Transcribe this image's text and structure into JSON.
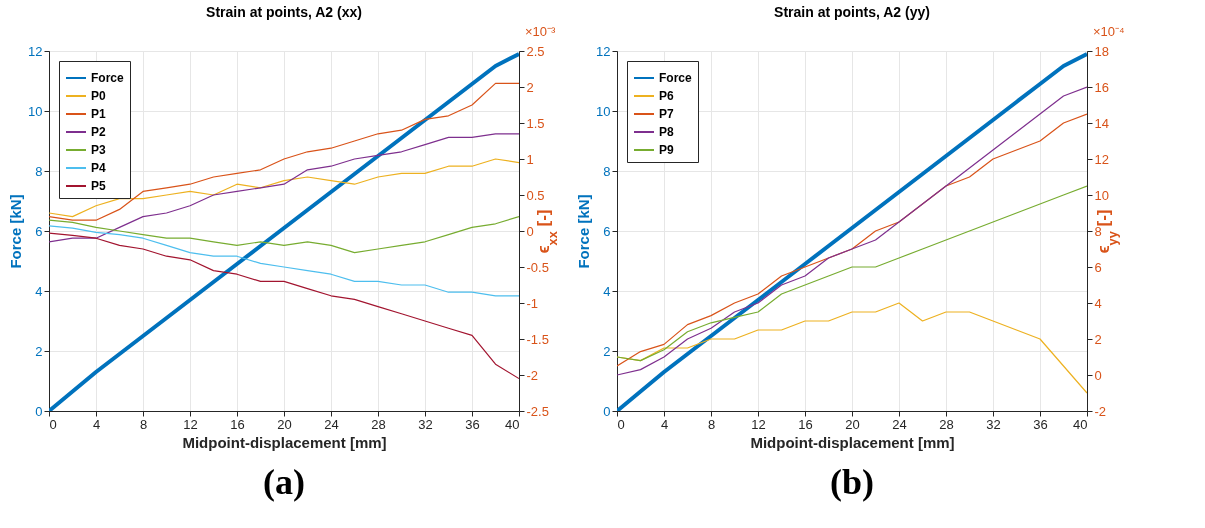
{
  "chart_data": [
    {
      "type": "line",
      "title": "Strain at points, A2 (xx)",
      "xlabel": "Midpoint-displacement [mm]",
      "ylabel": "Force [kN]",
      "y2label": "ϵ$_{xx}$ [-]",
      "annotations": [
        "×10⁻³",
        "(a)"
      ],
      "x": [
        0,
        2,
        4,
        6,
        8,
        10,
        12,
        14,
        16,
        18,
        20,
        22,
        24,
        26,
        28,
        30,
        32,
        34,
        36,
        38,
        40
      ],
      "xlim": [
        0,
        40
      ],
      "xticks": [
        0,
        4,
        8,
        12,
        16,
        20,
        24,
        28,
        32,
        36,
        40
      ],
      "ylim": [
        0,
        12
      ],
      "yticks": [
        0,
        2,
        4,
        6,
        8,
        10,
        12
      ],
      "y2lim": [
        -2.5,
        2.5
      ],
      "y2ticks": [
        -2.5,
        -2,
        -1.5,
        -1,
        -0.5,
        0,
        0.5,
        1,
        1.5,
        2,
        2.5
      ],
      "grid": true,
      "legend": "top left",
      "line_style": "solid",
      "series": [
        {
          "name": "Force",
          "color": "#0072bd",
          "values": [
            0,
            0.65,
            1.3,
            1.9,
            2.5,
            3.1,
            3.7,
            4.3,
            4.9,
            5.5,
            6.1,
            6.7,
            7.3,
            7.9,
            8.5,
            9.1,
            9.7,
            10.3,
            10.9,
            11.5,
            11.9
          ]
        },
        {
          "name": "P0",
          "color": "#edb120",
          "axis": "y2",
          "values": [
            0.25,
            0.2,
            0.35,
            0.45,
            0.45,
            0.5,
            0.55,
            0.5,
            0.65,
            0.6,
            0.7,
            0.75,
            0.7,
            0.65,
            0.75,
            0.8,
            0.8,
            0.9,
            0.9,
            1.0,
            0.95
          ]
        },
        {
          "name": "P1",
          "color": "#d95319",
          "axis": "y2",
          "values": [
            0.2,
            0.15,
            0.15,
            0.3,
            0.55,
            0.6,
            0.65,
            0.75,
            0.8,
            0.85,
            1.0,
            1.1,
            1.15,
            1.25,
            1.35,
            1.4,
            1.55,
            1.6,
            1.75,
            2.05,
            2.05
          ]
        },
        {
          "name": "P2",
          "color": "#7e2f8e",
          "axis": "y2",
          "values": [
            -0.15,
            -0.1,
            -0.1,
            0.05,
            0.2,
            0.25,
            0.35,
            0.5,
            0.55,
            0.6,
            0.65,
            0.85,
            0.9,
            1.0,
            1.05,
            1.1,
            1.2,
            1.3,
            1.3,
            1.35,
            1.35
          ]
        },
        {
          "name": "P3",
          "color": "#77ac30",
          "axis": "y2",
          "values": [
            0.15,
            0.12,
            0.05,
            0.0,
            -0.05,
            -0.1,
            -0.1,
            -0.15,
            -0.2,
            -0.15,
            -0.2,
            -0.15,
            -0.2,
            -0.3,
            -0.25,
            -0.2,
            -0.15,
            -0.05,
            0.05,
            0.1,
            0.2
          ]
        },
        {
          "name": "P4",
          "color": "#4dbeee",
          "axis": "y2",
          "values": [
            0.07,
            0.04,
            -0.02,
            -0.05,
            -0.1,
            -0.2,
            -0.3,
            -0.35,
            -0.35,
            -0.45,
            -0.5,
            -0.55,
            -0.6,
            -0.7,
            -0.7,
            -0.75,
            -0.75,
            -0.85,
            -0.85,
            -0.9,
            -0.9
          ]
        },
        {
          "name": "P5",
          "color": "#a2142f",
          "axis": "y2",
          "values": [
            -0.03,
            -0.06,
            -0.1,
            -0.2,
            -0.25,
            -0.35,
            -0.4,
            -0.55,
            -0.6,
            -0.7,
            -0.7,
            -0.8,
            -0.9,
            -0.95,
            -1.05,
            -1.15,
            -1.25,
            -1.35,
            -1.45,
            -1.85,
            -2.05
          ]
        }
      ]
    },
    {
      "type": "line",
      "title": "Strain at points, A2 (yy)",
      "xlabel": "Midpoint-displacement [mm]",
      "ylabel": "Force [kN]",
      "y2label": "ϵ$_{yy}$ [-]",
      "annotations": [
        "×10⁻⁴",
        "(b)"
      ],
      "x": [
        0,
        2,
        4,
        6,
        8,
        10,
        12,
        14,
        16,
        18,
        20,
        22,
        24,
        26,
        28,
        30,
        32,
        34,
        36,
        38,
        40
      ],
      "xlim": [
        0,
        40
      ],
      "xticks": [
        0,
        4,
        8,
        12,
        16,
        20,
        24,
        28,
        32,
        36,
        40
      ],
      "ylim": [
        0,
        12
      ],
      "yticks": [
        0,
        2,
        4,
        6,
        8,
        10,
        12
      ],
      "y2lim": [
        -2,
        18
      ],
      "y2ticks": [
        -2,
        0,
        2,
        4,
        6,
        8,
        10,
        12,
        14,
        16,
        18
      ],
      "grid": true,
      "legend": "top left",
      "line_style": "solid",
      "series": [
        {
          "name": "Force",
          "color": "#0072bd",
          "values": [
            0,
            0.65,
            1.3,
            1.9,
            2.5,
            3.1,
            3.7,
            4.3,
            4.9,
            5.5,
            6.1,
            6.7,
            7.3,
            7.9,
            8.5,
            9.1,
            9.7,
            10.3,
            10.9,
            11.5,
            11.9
          ]
        },
        {
          "name": "P6",
          "color": "#edb120",
          "axis": "y2",
          "values": [
            1,
            0.8,
            1.5,
            1.5,
            2,
            2,
            2.5,
            2.5,
            3,
            3,
            3.5,
            3.5,
            4,
            3,
            3.5,
            3.5,
            3,
            2.5,
            2,
            0.5,
            -1
          ]
        },
        {
          "name": "P7",
          "color": "#d95319",
          "axis": "y2",
          "values": [
            0.5,
            1.3,
            1.7,
            2.8,
            3.3,
            4,
            4.5,
            5.5,
            6,
            6.5,
            7,
            8,
            8.5,
            9.5,
            10.5,
            11,
            12,
            12.5,
            13,
            14,
            14.5
          ]
        },
        {
          "name": "P8",
          "color": "#7e2f8e",
          "axis": "y2",
          "values": [
            0,
            0.3,
            1,
            2,
            2.6,
            3.5,
            4,
            5,
            5.5,
            6.5,
            7,
            7.5,
            8.5,
            9.5,
            10.5,
            11.5,
            12.5,
            13.5,
            14.5,
            15.5,
            16
          ]
        },
        {
          "name": "P9",
          "color": "#77ac30",
          "axis": "y2",
          "values": [
            1,
            0.8,
            1.4,
            2.4,
            2.9,
            3.2,
            3.5,
            4.5,
            5,
            5.5,
            6,
            6,
            6.5,
            7,
            7.5,
            8,
            8.5,
            9,
            9.5,
            10,
            10.5
          ]
        }
      ]
    }
  ]
}
